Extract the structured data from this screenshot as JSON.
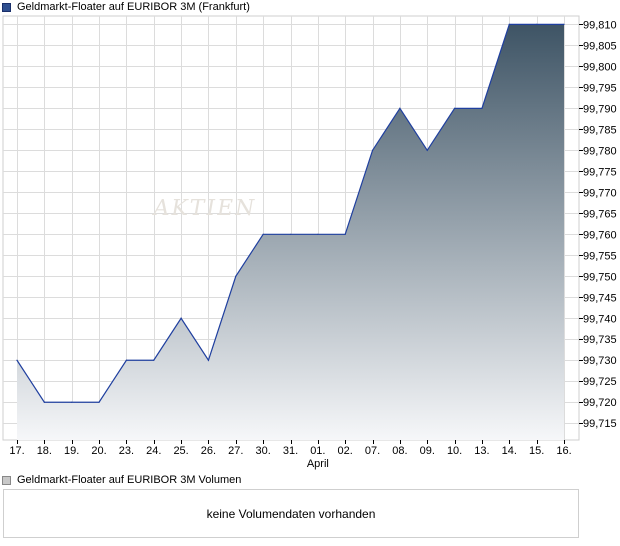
{
  "chart_data": [
    {
      "type": "area",
      "title": "Geldmarkt-Floater auf EURIBOR 3M (Frankfurt)",
      "x": [
        "17.",
        "18.",
        "19.",
        "20.",
        "23.",
        "24.",
        "25.",
        "26.",
        "27.",
        "30.",
        "31.",
        "01.",
        "02.",
        "07.",
        "08.",
        "09.",
        "10.",
        "13.",
        "14.",
        "15.",
        "16."
      ],
      "x_sublabel": {
        "index": 11,
        "text": "April"
      },
      "values": [
        99.73,
        99.72,
        99.72,
        99.72,
        99.73,
        99.73,
        99.74,
        99.73,
        99.75,
        99.76,
        99.76,
        99.76,
        99.76,
        99.78,
        99.79,
        99.78,
        99.79,
        99.79,
        99.81,
        99.81,
        99.81
      ],
      "ylim": [
        99.711,
        99.812
      ],
      "yticks": [
        "99,715",
        "99,720",
        "99,725",
        "99,730",
        "99,735",
        "99,740",
        "99,745",
        "99,750",
        "99,755",
        "99,760",
        "99,765",
        "99,770",
        "99,775",
        "99,780",
        "99,785",
        "99,790",
        "99,795",
        "99,800",
        "99,805",
        "99,810"
      ],
      "ytick_values": [
        99.715,
        99.72,
        99.725,
        99.73,
        99.735,
        99.74,
        99.745,
        99.75,
        99.755,
        99.76,
        99.765,
        99.77,
        99.775,
        99.78,
        99.785,
        99.79,
        99.795,
        99.8,
        99.805,
        99.81
      ],
      "grid": true,
      "line_color": "#1f3f9f",
      "fill_top_color": "#3e5465",
      "fill_bottom_color": "#f6f7f9"
    },
    {
      "type": "bar",
      "title": "Geldmarkt-Floater auf EURIBOR 3M Volumen",
      "note": "keine Volumendaten vorhanden"
    }
  ],
  "watermark": "AKTIEN"
}
